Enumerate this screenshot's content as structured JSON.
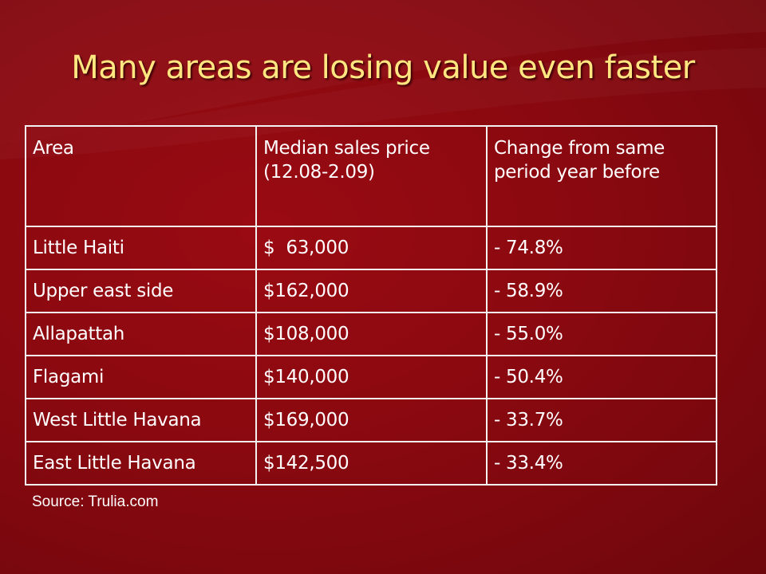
{
  "slide": {
    "title": "Many areas are losing value even faster",
    "source": "Source: Trulia.com",
    "colors": {
      "background": "#8a0910",
      "title": "#ffe680",
      "text": "#ffffff",
      "border": "#f2f2f2"
    }
  },
  "table": {
    "headers": [
      "Area",
      "Median sales price (12.08-2.09)",
      "Change from same period year before"
    ],
    "rows": [
      {
        "area": "Little Haiti",
        "price": "$  63,000",
        "change": "- 74.8%"
      },
      {
        "area": "Upper east side",
        "price": "$162,000",
        "change": "- 58.9%"
      },
      {
        "area": "Allapattah",
        "price": "$108,000",
        "change": "- 55.0%"
      },
      {
        "area": "Flagami",
        "price": "$140,000",
        "change": "- 50.4%"
      },
      {
        "area": "West Little Havana",
        "price": "$169,000",
        "change": "- 33.7%"
      },
      {
        "area": "East Little Havana",
        "price": "$142,500",
        "change": "- 33.4%"
      }
    ]
  }
}
